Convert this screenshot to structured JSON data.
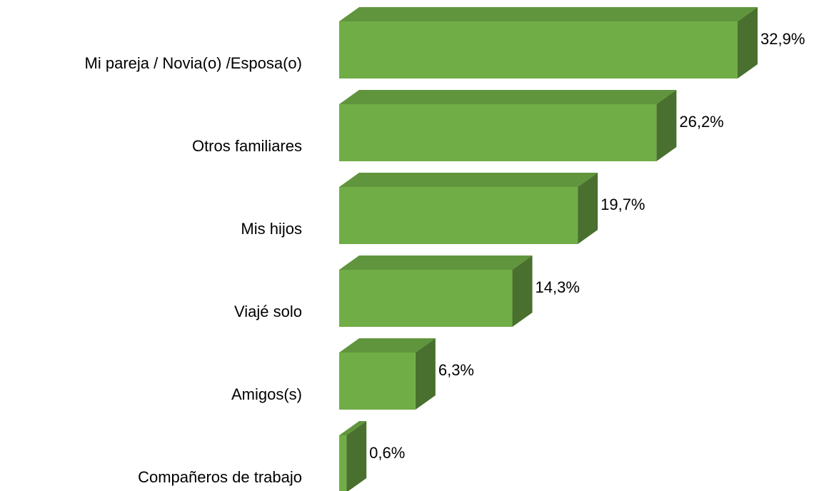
{
  "chart_data": {
    "type": "bar3d_horizontal",
    "categories": [
      "Mi pareja / Novia(o) /Esposa(o)",
      "Otros familiares",
      "Mis hijos",
      "Viajé solo",
      "Amigos(s)",
      "Compañeros de trabajo"
    ],
    "values": [
      32.9,
      26.2,
      19.7,
      14.3,
      6.3,
      0.6
    ],
    "value_labels": [
      "32,9%",
      "26,2%",
      "19,7%",
      "14,3%",
      "6,3%",
      "0,6%"
    ],
    "color": "#70ad47"
  }
}
